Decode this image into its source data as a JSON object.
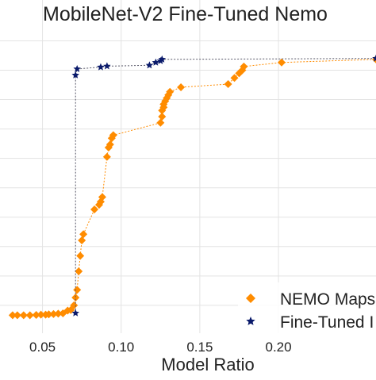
{
  "chart_data": {
    "type": "scatter",
    "title": "MobileNet-V2 Fine-Tuned Nemo",
    "xlabel": "Model Ratio",
    "ylabel": "",
    "xlim": [
      0.025,
      0.262
    ],
    "ylim": [
      0.0,
      1.0
    ],
    "x_ticks": [
      0.05,
      0.1,
      0.15,
      0.2
    ],
    "x_tick_labels": [
      "0.05",
      "0.10",
      "0.15",
      "0.20"
    ],
    "y_ticks": [
      0.09,
      0.185,
      0.28,
      0.375,
      0.47,
      0.565,
      0.66,
      0.755,
      0.85,
      0.945
    ],
    "grid": true,
    "legend": {
      "position": "bottom-right",
      "entries": [
        {
          "label": "NEMO Maps",
          "marker": "diamond",
          "color": "#ff8c00"
        },
        {
          "label": "Fine-Tuned I",
          "marker": "star",
          "color": "#0a1a6b"
        }
      ]
    },
    "series": [
      {
        "name": "NEMO Maps",
        "marker": "diamond",
        "color": "#ff8c00",
        "line_style": "dotted",
        "points": [
          [
            0.031,
            0.058
          ],
          [
            0.034,
            0.058
          ],
          [
            0.038,
            0.058
          ],
          [
            0.042,
            0.058
          ],
          [
            0.046,
            0.059
          ],
          [
            0.049,
            0.06
          ],
          [
            0.052,
            0.06
          ],
          [
            0.054,
            0.061
          ],
          [
            0.057,
            0.062
          ],
          [
            0.06,
            0.063
          ],
          [
            0.063,
            0.064
          ],
          [
            0.066,
            0.073
          ],
          [
            0.068,
            0.075
          ],
          [
            0.07,
            0.09
          ],
          [
            0.071,
            0.115
          ],
          [
            0.072,
            0.14
          ],
          [
            0.073,
            0.2
          ],
          [
            0.074,
            0.25
          ],
          [
            0.075,
            0.3
          ],
          [
            0.076,
            0.32
          ],
          [
            0.083,
            0.4
          ],
          [
            0.086,
            0.415
          ],
          [
            0.087,
            0.425
          ],
          [
            0.088,
            0.44
          ],
          [
            0.091,
            0.57
          ],
          [
            0.092,
            0.6
          ],
          [
            0.093,
            0.61
          ],
          [
            0.094,
            0.63
          ],
          [
            0.095,
            0.64
          ],
          [
            0.125,
            0.68
          ],
          [
            0.126,
            0.7
          ],
          [
            0.126,
            0.72
          ],
          [
            0.127,
            0.73
          ],
          [
            0.127,
            0.74
          ],
          [
            0.128,
            0.75
          ],
          [
            0.129,
            0.76
          ],
          [
            0.13,
            0.77
          ],
          [
            0.131,
            0.78
          ],
          [
            0.138,
            0.795
          ],
          [
            0.168,
            0.805
          ],
          [
            0.172,
            0.825
          ],
          [
            0.175,
            0.84
          ],
          [
            0.177,
            0.85
          ],
          [
            0.178,
            0.862
          ],
          [
            0.202,
            0.875
          ],
          [
            0.262,
            0.885
          ]
        ]
      },
      {
        "name": "Fine-Tuned I",
        "marker": "star",
        "color": "#0a1a6b",
        "line_style": "dotted",
        "points": [
          [
            0.071,
            0.065
          ],
          [
            0.071,
            0.834
          ],
          [
            0.072,
            0.854
          ],
          [
            0.087,
            0.86
          ],
          [
            0.091,
            0.863
          ],
          [
            0.118,
            0.866
          ],
          [
            0.122,
            0.875
          ],
          [
            0.125,
            0.88
          ],
          [
            0.126,
            0.885
          ],
          [
            0.262,
            0.888
          ]
        ]
      }
    ]
  }
}
